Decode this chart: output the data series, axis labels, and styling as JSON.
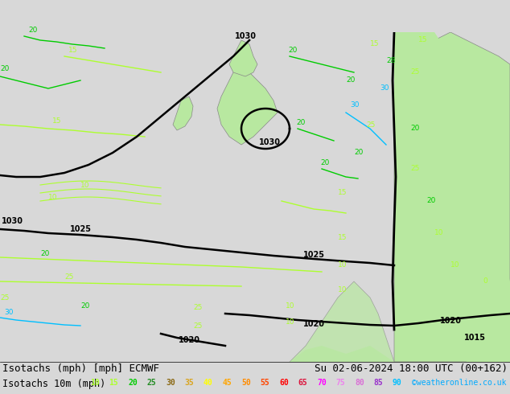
{
  "title_left": "Isotachs (mph) [mph] ECMWF",
  "title_right": "Su 02-06-2024 18:00 UTC (00+162)",
  "legend_label": "Isotachs 10m (mph)",
  "legend_values": [
    10,
    15,
    20,
    25,
    30,
    35,
    40,
    45,
    50,
    55,
    60,
    65,
    70,
    75,
    80,
    85,
    90
  ],
  "legend_colors": [
    "#adff2f",
    "#adff2f",
    "#00cc00",
    "#228B22",
    "#8B6914",
    "#DAA520",
    "#ffff00",
    "#ffa500",
    "#ff8c00",
    "#ff4500",
    "#ff0000",
    "#dc143c",
    "#ff00ff",
    "#ee82ee",
    "#da70d6",
    "#9932cc",
    "#00bfff"
  ],
  "copyright": "©weatheronline.co.uk",
  "bg_color": "#d8d8d8",
  "sea_color": "#d8d8d8",
  "land_color_light": "#e8e8e8",
  "green_land_color": "#b8e8a0",
  "title_font_size": 9,
  "legend_font_size": 8.5,
  "bottom_bar_color": "#e8e8e8",
  "label_bar_color": "#e0e0e0"
}
